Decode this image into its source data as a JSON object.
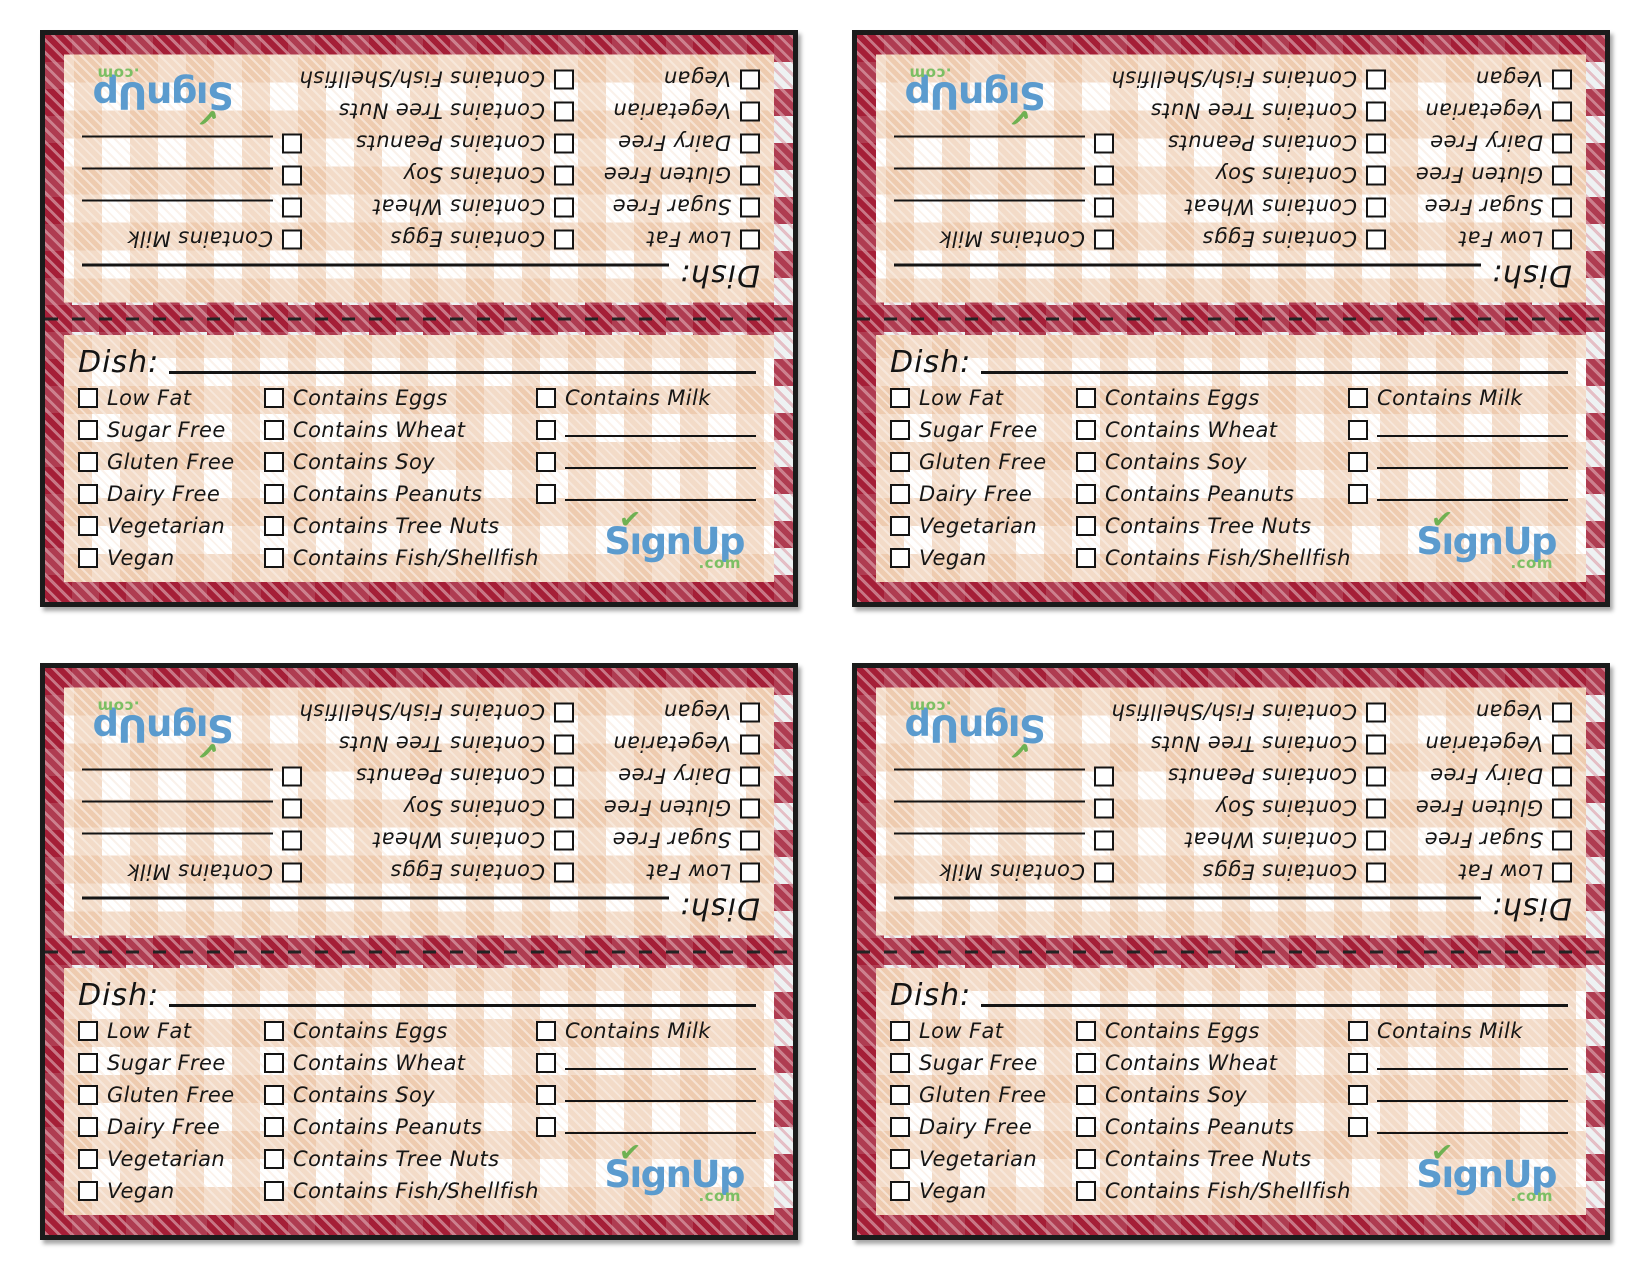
{
  "colors": {
    "gingham_red": "#a31932",
    "gingham_tan": "#f0d9c3",
    "border_black": "#1b1b1b",
    "ink": "#141414",
    "logo_blue": "#5b9bce",
    "logo_green": "#6fb152"
  },
  "sheet": {
    "card_count": 4,
    "halves_per_card": 2
  },
  "card": {
    "dish_label": "Dish:",
    "diet_options": [
      "Low Fat",
      "Sugar Free",
      "Gluten Free",
      "Dairy Free",
      "Vegetarian",
      "Vegan"
    ],
    "contains_options": [
      "Contains Eggs",
      "Contains Wheat",
      "Contains Soy",
      "Contains Peanuts",
      "Contains Tree Nuts",
      "Contains Fish/Shellfish"
    ],
    "extra_column": {
      "labeled_option": "Contains Milk",
      "blank_write_in_lines": 3
    },
    "logo": {
      "text": "SignUp",
      "domain": ".com",
      "check_glyph": "✔"
    }
  }
}
